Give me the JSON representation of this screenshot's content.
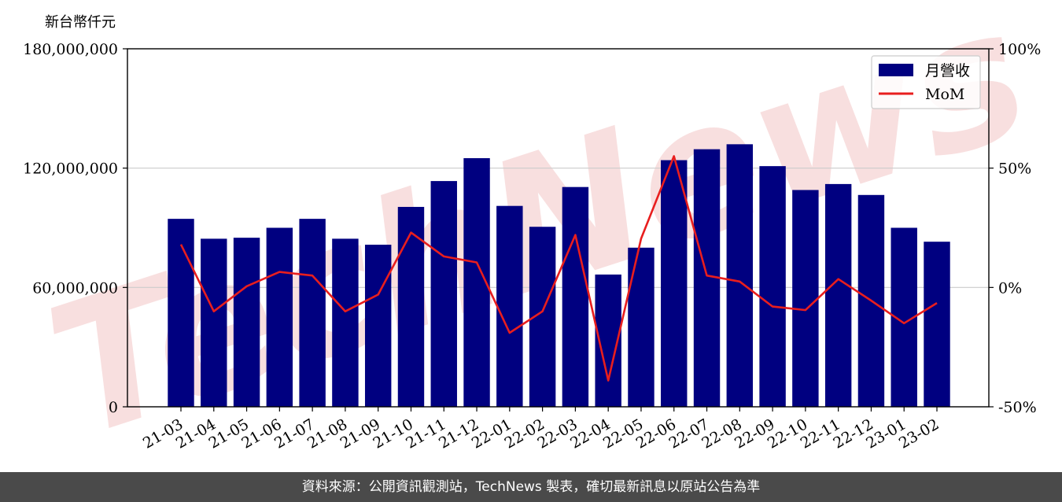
{
  "unit_label": "新台幣仟元",
  "watermark_text": "TechNews",
  "footer_text": "資料來源：公開資訊觀測站，TechNews 製表，確切最新訊息以原站公告為準",
  "colors": {
    "bar": "#000080",
    "line": "#e81e1e",
    "grid": "#cccccc",
    "footer_bg": "#4a4a4a",
    "watermark": "#f2c4c4"
  },
  "chart_data": {
    "type": "bar",
    "categories": [
      "21-03",
      "21-04",
      "21-05",
      "21-06",
      "21-07",
      "21-08",
      "21-09",
      "21-10",
      "21-11",
      "21-12",
      "22-01",
      "22-02",
      "22-03",
      "22-04",
      "22-05",
      "22-06",
      "22-07",
      "22-08",
      "22-09",
      "22-10",
      "22-11",
      "22-12",
      "23-01",
      "23-02"
    ],
    "series": [
      {
        "name": "月營收",
        "type": "bar",
        "axis": "left",
        "values": [
          94500000,
          84500000,
          85000000,
          90000000,
          94500000,
          84500000,
          81500000,
          100500000,
          113500000,
          125000000,
          101000000,
          90500000,
          110500000,
          66500000,
          80000000,
          124000000,
          129500000,
          132000000,
          121000000,
          109000000,
          112000000,
          106500000,
          90000000,
          83000000
        ]
      },
      {
        "name": "MoM",
        "type": "line",
        "axis": "right",
        "values": [
          18,
          -10,
          0.5,
          6.5,
          5,
          -10,
          -3,
          23,
          13,
          10.5,
          -19,
          -10,
          22,
          -39,
          20.5,
          55,
          5,
          2.5,
          -8,
          -9.5,
          3.5,
          -5.5,
          -15,
          -6.5
        ]
      }
    ],
    "y_left": {
      "lim": [
        0,
        180000000
      ],
      "ticks": [
        0,
        60000000,
        120000000,
        180000000
      ],
      "tick_labels": [
        "0",
        "60,000,000",
        "120,000,000",
        "180,000,000"
      ]
    },
    "y_right": {
      "lim": [
        -50,
        100
      ],
      "ticks": [
        -50,
        0,
        50,
        100
      ],
      "tick_labels": [
        "-50%",
        "0%",
        "50%",
        "100%"
      ]
    },
    "grid": true,
    "legend": "top-right"
  }
}
